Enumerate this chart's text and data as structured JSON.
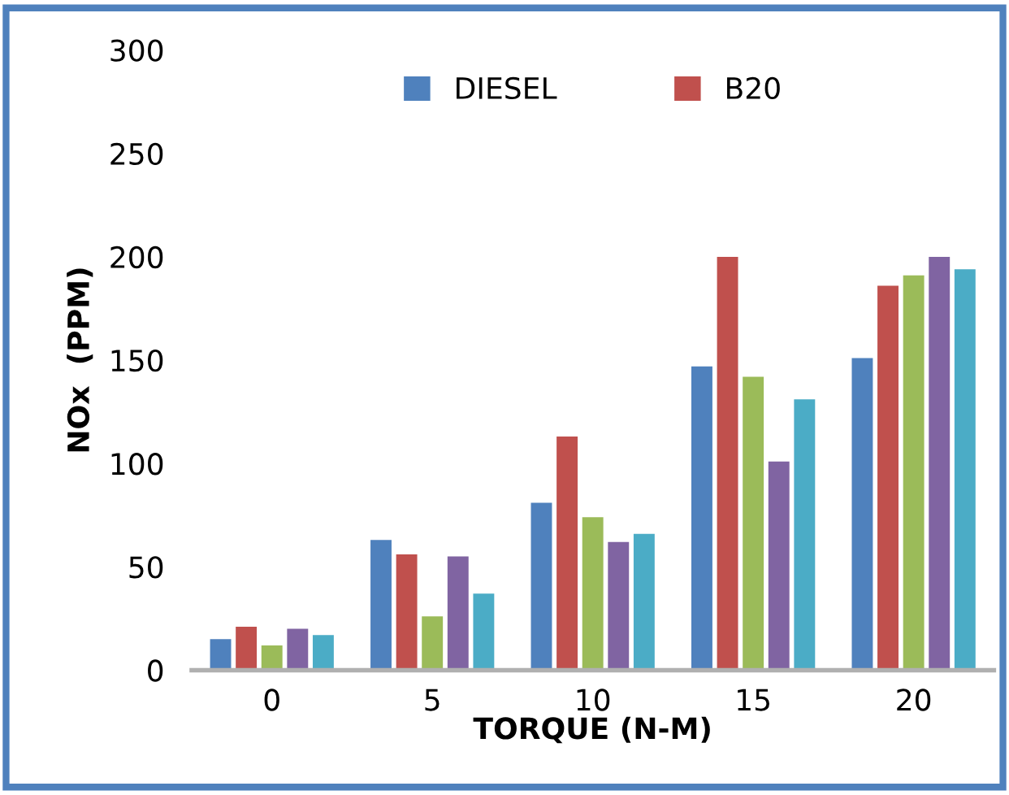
{
  "chart_data": {
    "type": "bar",
    "xlabel": "TORQUE (N-M)",
    "ylabel": "NOx  (PPM)",
    "categories": [
      "0",
      "5",
      "10",
      "15",
      "20"
    ],
    "series": [
      {
        "name": "DIESEL",
        "color": "#4f81bd",
        "values": [
          15,
          63,
          81,
          147,
          151
        ]
      },
      {
        "name": "B20",
        "color": "#c0504d",
        "values": [
          21,
          56,
          113,
          200,
          186
        ]
      },
      {
        "color": "#9bbb59",
        "values": [
          12,
          26,
          74,
          142,
          191
        ]
      },
      {
        "color": "#8064a2",
        "values": [
          20,
          55,
          62,
          101,
          200
        ]
      },
      {
        "color": "#4bacc6",
        "values": [
          17,
          37,
          66,
          131,
          194
        ]
      }
    ],
    "ylim": [
      0,
      300
    ],
    "yticks": [
      0,
      50,
      100,
      150,
      200,
      250,
      300
    ],
    "grid": false,
    "legend": "top"
  }
}
